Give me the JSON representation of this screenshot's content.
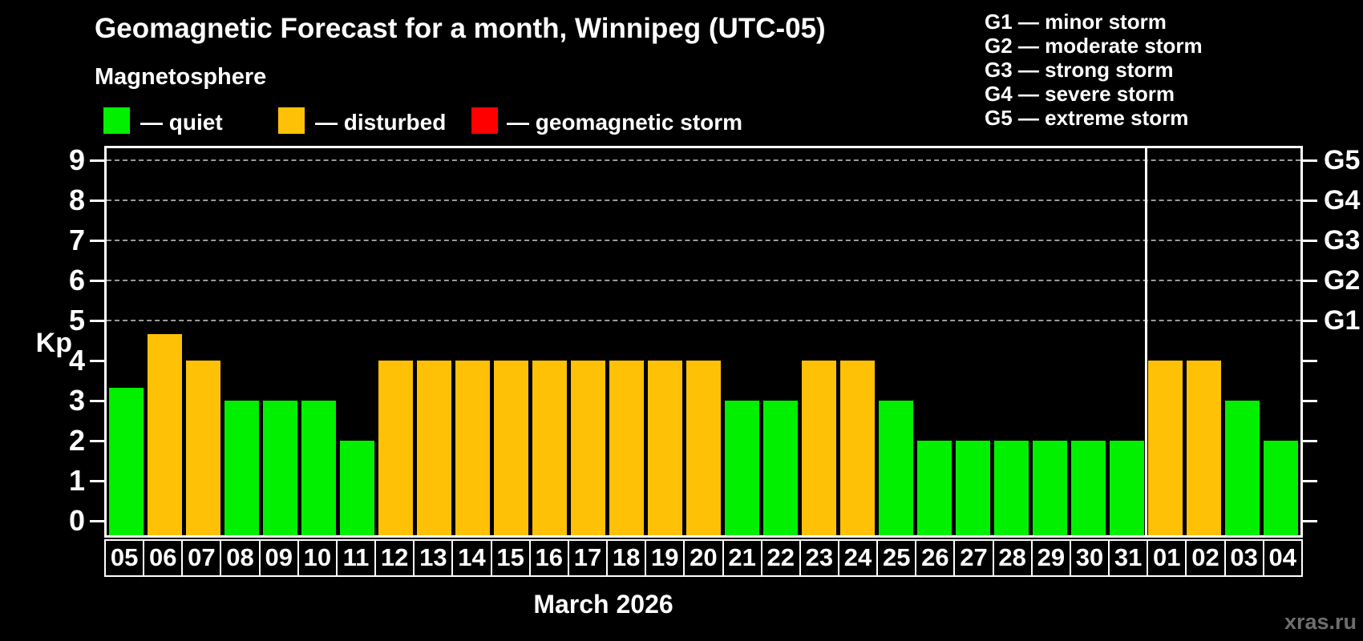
{
  "page": {
    "title": "Geomagnetic Forecast for a month, Winnipeg (UTC-05)",
    "subtitle": "Magnetosphere",
    "watermark": "xras.ru"
  },
  "legend": {
    "items": [
      {
        "label": "— quiet",
        "status": "quiet",
        "color": "#00f000"
      },
      {
        "label": "— disturbed",
        "status": "disturbed",
        "color": "#ffc105"
      },
      {
        "label": "— geomagnetic storm",
        "status": "storm",
        "color": "#ff0000"
      }
    ]
  },
  "g_legend": {
    "items": [
      "G1 — minor storm",
      "G2 — moderate storm",
      "G3 — strong storm",
      "G4 — severe storm",
      "G5 — extreme storm"
    ]
  },
  "axes": {
    "y_label": "Kp",
    "y_ticks": [
      0,
      1,
      2,
      3,
      4,
      5,
      6,
      7,
      8,
      9
    ],
    "right_ticks": [
      {
        "kp": 5,
        "label": "G1"
      },
      {
        "kp": 6,
        "label": "G2"
      },
      {
        "kp": 7,
        "label": "G3"
      },
      {
        "kp": 8,
        "label": "G4"
      },
      {
        "kp": 9,
        "label": "G5"
      }
    ],
    "x_title": "March 2026"
  },
  "chart_data": {
    "type": "bar",
    "title": "Geomagnetic Forecast for a month, Winnipeg (UTC-05)",
    "subtitle": "Magnetosphere",
    "xlabel": "March 2026",
    "ylabel": "Kp",
    "ylim": [
      0,
      9.45
    ],
    "grid_levels": [
      5,
      6,
      7,
      8,
      9
    ],
    "grid_on": true,
    "legend_position": "top",
    "legend": [
      "quiet",
      "disturbed",
      "geomagnetic storm"
    ],
    "categories": [
      "05",
      "06",
      "07",
      "08",
      "09",
      "10",
      "11",
      "12",
      "13",
      "14",
      "15",
      "16",
      "17",
      "18",
      "19",
      "20",
      "21",
      "22",
      "23",
      "24",
      "25",
      "26",
      "27",
      "28",
      "29",
      "30",
      "31",
      "01",
      "02",
      "03",
      "04"
    ],
    "values": [
      3.33,
      4.67,
      4,
      3,
      3,
      3,
      2,
      4,
      4,
      4,
      4,
      4,
      4,
      4,
      4,
      4,
      3,
      3,
      4,
      4,
      3,
      2,
      2,
      2,
      2,
      2,
      2,
      4,
      4,
      3,
      2
    ],
    "statuses": [
      "quiet",
      "disturbed",
      "disturbed",
      "quiet",
      "quiet",
      "quiet",
      "quiet",
      "disturbed",
      "disturbed",
      "disturbed",
      "disturbed",
      "disturbed",
      "disturbed",
      "disturbed",
      "disturbed",
      "disturbed",
      "quiet",
      "quiet",
      "disturbed",
      "disturbed",
      "quiet",
      "quiet",
      "quiet",
      "quiet",
      "quiet",
      "quiet",
      "quiet",
      "disturbed",
      "disturbed",
      "quiet",
      "quiet"
    ],
    "status_colors": {
      "quiet": "#00f000",
      "disturbed": "#ffc105",
      "storm": "#ff0000"
    },
    "month_separator_after": "31"
  }
}
